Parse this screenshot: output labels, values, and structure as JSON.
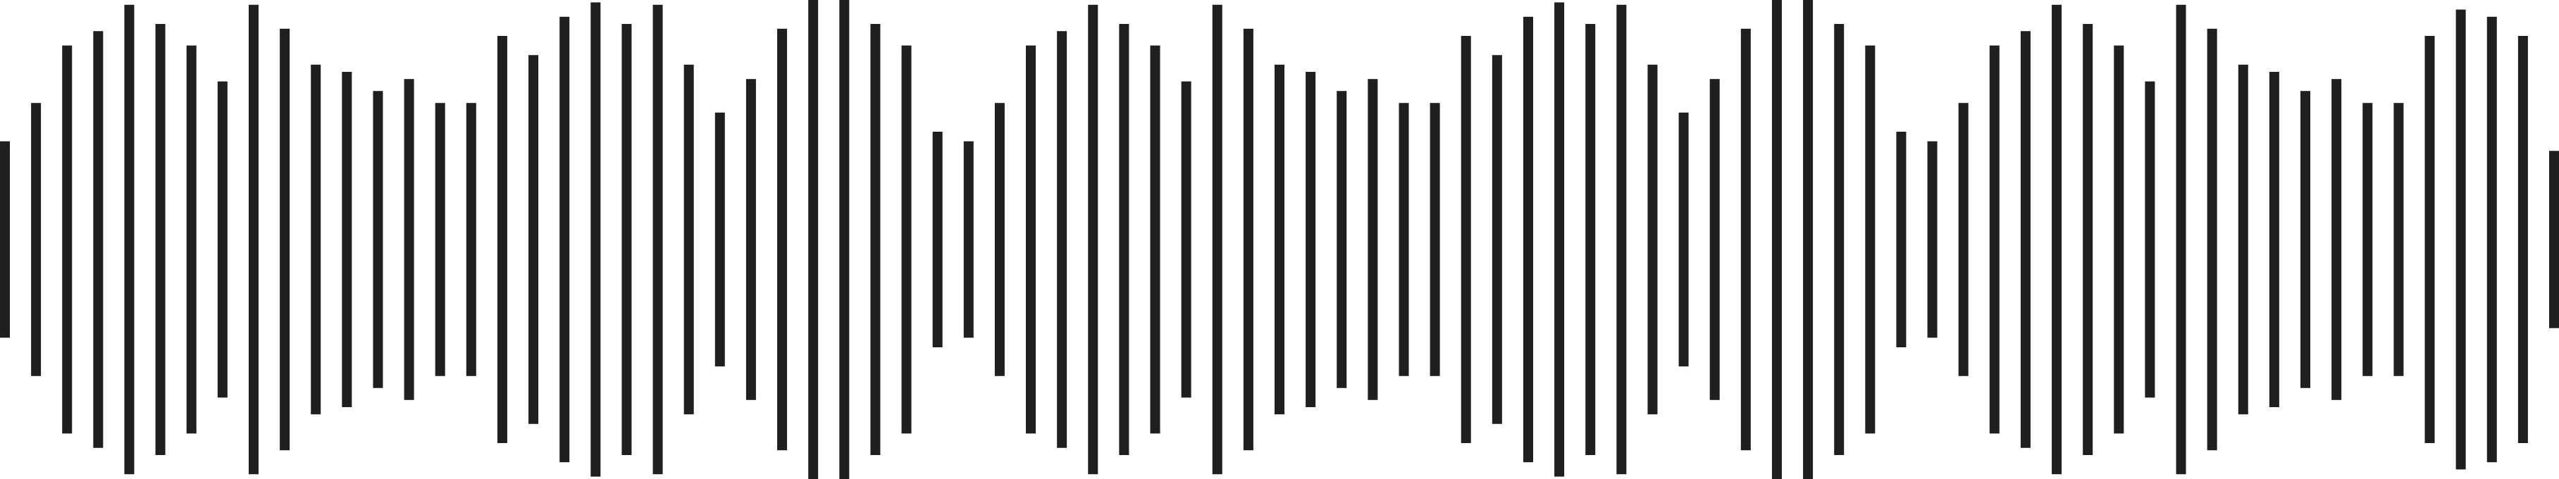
{
  "waveform": {
    "icon": "audio-waveform-icon",
    "bar_color": "#1f1f1f",
    "background": "#ffffff",
    "levels": [
      0.41,
      0.57,
      0.81,
      0.87,
      0.98,
      0.9,
      0.81,
      0.66,
      0.98,
      0.88,
      0.73,
      0.7,
      0.62,
      0.67,
      0.57,
      0.57,
      0.85,
      0.77,
      0.93,
      0.99,
      0.9,
      0.98,
      0.73,
      0.53,
      0.67,
      0.88,
      1.0,
      1.0,
      0.9,
      0.81,
      0.45,
      0.41,
      0.57,
      0.81,
      0.87,
      0.98,
      0.9,
      0.81,
      0.66,
      0.98,
      0.88,
      0.73,
      0.7,
      0.62,
      0.67,
      0.57,
      0.57,
      0.85,
      0.77,
      0.93,
      0.99,
      0.9,
      0.98,
      0.73,
      0.53,
      0.67,
      0.88,
      1.0,
      1.0,
      0.9,
      0.81,
      0.45,
      0.41,
      0.57,
      0.81,
      0.87,
      0.98,
      0.9,
      0.81,
      0.66,
      0.98,
      0.88,
      0.73,
      0.7,
      0.62,
      0.67,
      0.57,
      0.57,
      0.85,
      0.96,
      0.93,
      0.85,
      0.37
    ]
  }
}
